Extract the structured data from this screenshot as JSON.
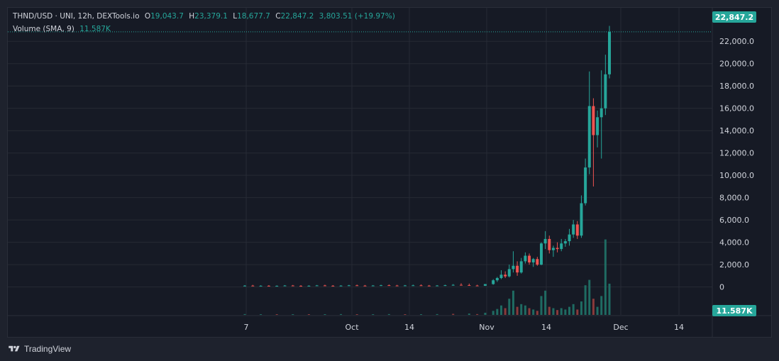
{
  "legend": {
    "symbol": "THND/USD · UNI, 12h, DEXTools.io",
    "open_label": "O",
    "open": "19,043.7",
    "high_label": "H",
    "high": "23,379.1",
    "low_label": "L",
    "low": "18,677.7",
    "close_label": "C",
    "close": "22,847.2",
    "change": "3,803.51 (+19.97%)",
    "volume_label": "Volume (SMA, 9)",
    "volume_value": "11.587K"
  },
  "last_price": "22,847.2",
  "volume_tag": "11.587K",
  "footer": {
    "brand": "TradingView"
  },
  "colors": {
    "up": "#26a69a",
    "down": "#ef5350",
    "grid": "#262a35",
    "text": "#d1d4dc",
    "bg": "#161a25"
  },
  "chart_data": {
    "type": "candlestick",
    "price_axis": {
      "ticks": [
        "0",
        "2,000.0",
        "4,000.0",
        "6,000.0",
        "8,000.0",
        "10,000.0",
        "12,000.0",
        "14,000.0",
        "16,000.0",
        "18,000.0",
        "20,000.0",
        "22,000.0"
      ],
      "ylim": [
        -2500,
        25000
      ]
    },
    "time_axis": {
      "ticks": [
        "7",
        "Oct",
        "14",
        "Nov",
        "14",
        "Dec",
        "14"
      ]
    },
    "candles": [
      {
        "t": 0,
        "o": 100,
        "h": 170,
        "l": 60,
        "c": 120
      },
      {
        "t": 2,
        "o": 120,
        "h": 190,
        "l": 80,
        "c": 90
      },
      {
        "t": 4,
        "o": 90,
        "h": 150,
        "l": 60,
        "c": 110
      },
      {
        "t": 6,
        "o": 110,
        "h": 160,
        "l": 70,
        "c": 80
      },
      {
        "t": 8,
        "o": 80,
        "h": 140,
        "l": 50,
        "c": 100
      },
      {
        "t": 10,
        "o": 100,
        "h": 170,
        "l": 70,
        "c": 130
      },
      {
        "t": 12,
        "o": 130,
        "h": 180,
        "l": 80,
        "c": 100
      },
      {
        "t": 14,
        "o": 100,
        "h": 160,
        "l": 60,
        "c": 90
      },
      {
        "t": 16,
        "o": 90,
        "h": 150,
        "l": 50,
        "c": 110
      },
      {
        "t": 18,
        "o": 110,
        "h": 180,
        "l": 80,
        "c": 140
      },
      {
        "t": 20,
        "o": 140,
        "h": 200,
        "l": 90,
        "c": 110
      },
      {
        "t": 22,
        "o": 110,
        "h": 170,
        "l": 70,
        "c": 100
      },
      {
        "t": 24,
        "o": 100,
        "h": 160,
        "l": 60,
        "c": 120
      },
      {
        "t": 26,
        "o": 120,
        "h": 190,
        "l": 90,
        "c": 150
      },
      {
        "t": 28,
        "o": 150,
        "h": 210,
        "l": 100,
        "c": 120
      },
      {
        "t": 30,
        "o": 120,
        "h": 180,
        "l": 80,
        "c": 110
      },
      {
        "t": 32,
        "o": 110,
        "h": 170,
        "l": 70,
        "c": 130
      },
      {
        "t": 34,
        "o": 130,
        "h": 200,
        "l": 90,
        "c": 160
      },
      {
        "t": 36,
        "o": 160,
        "h": 220,
        "l": 110,
        "c": 130
      },
      {
        "t": 38,
        "o": 130,
        "h": 190,
        "l": 90,
        "c": 120
      },
      {
        "t": 40,
        "o": 120,
        "h": 180,
        "l": 80,
        "c": 140
      },
      {
        "t": 42,
        "o": 140,
        "h": 210,
        "l": 100,
        "c": 150
      },
      {
        "t": 44,
        "o": 150,
        "h": 230,
        "l": 110,
        "c": 120
      },
      {
        "t": 46,
        "o": 120,
        "h": 180,
        "l": 80,
        "c": 110
      },
      {
        "t": 48,
        "o": 110,
        "h": 170,
        "l": 70,
        "c": 130
      },
      {
        "t": 50,
        "o": 130,
        "h": 200,
        "l": 90,
        "c": 160
      },
      {
        "t": 52,
        "o": 160,
        "h": 260,
        "l": 120,
        "c": 190
      },
      {
        "t": 54,
        "o": 190,
        "h": 330,
        "l": 150,
        "c": 170
      },
      {
        "t": 56,
        "o": 170,
        "h": 300,
        "l": 110,
        "c": 130
      },
      {
        "t": 58,
        "o": 130,
        "h": 200,
        "l": 80,
        "c": 110
      },
      {
        "t": 60,
        "o": 110,
        "h": 240,
        "l": 90,
        "c": 260
      },
      {
        "t": 62,
        "o": 260,
        "h": 700,
        "l": 200,
        "c": 600
      },
      {
        "t": 63,
        "o": 600,
        "h": 900,
        "l": 450,
        "c": 800
      },
      {
        "t": 64,
        "o": 800,
        "h": 1500,
        "l": 700,
        "c": 1100
      },
      {
        "t": 65,
        "o": 1100,
        "h": 1400,
        "l": 800,
        "c": 950
      },
      {
        "t": 66,
        "o": 950,
        "h": 2000,
        "l": 850,
        "c": 1600
      },
      {
        "t": 67,
        "o": 1600,
        "h": 3200,
        "l": 1300,
        "c": 1900
      },
      {
        "t": 68,
        "o": 1900,
        "h": 2300,
        "l": 1000,
        "c": 1300
      },
      {
        "t": 69,
        "o": 1300,
        "h": 2600,
        "l": 1200,
        "c": 2300
      },
      {
        "t": 70,
        "o": 2300,
        "h": 3100,
        "l": 2100,
        "c": 2800
      },
      {
        "t": 71,
        "o": 2800,
        "h": 3000,
        "l": 2000,
        "c": 2200
      },
      {
        "t": 72,
        "o": 2200,
        "h": 2600,
        "l": 1800,
        "c": 2500
      },
      {
        "t": 73,
        "o": 2500,
        "h": 2700,
        "l": 1900,
        "c": 2000
      },
      {
        "t": 74,
        "o": 2000,
        "h": 4000,
        "l": 1950,
        "c": 3900
      },
      {
        "t": 75,
        "o": 3900,
        "h": 5000,
        "l": 3400,
        "c": 4300
      },
      {
        "t": 76,
        "o": 4300,
        "h": 4600,
        "l": 3000,
        "c": 3300
      },
      {
        "t": 77,
        "o": 3300,
        "h": 3700,
        "l": 2700,
        "c": 3500
      },
      {
        "t": 78,
        "o": 3500,
        "h": 4000,
        "l": 3100,
        "c": 3400
      },
      {
        "t": 79,
        "o": 3400,
        "h": 4300,
        "l": 3200,
        "c": 3900
      },
      {
        "t": 80,
        "o": 3900,
        "h": 4300,
        "l": 3600,
        "c": 4100
      },
      {
        "t": 81,
        "o": 4100,
        "h": 5200,
        "l": 3700,
        "c": 4700
      },
      {
        "t": 82,
        "o": 4700,
        "h": 6000,
        "l": 4400,
        "c": 5600
      },
      {
        "t": 83,
        "o": 5600,
        "h": 5900,
        "l": 4300,
        "c": 4600
      },
      {
        "t": 84,
        "o": 4600,
        "h": 8200,
        "l": 4400,
        "c": 7500
      },
      {
        "t": 85,
        "o": 7500,
        "h": 11500,
        "l": 7300,
        "c": 10700
      },
      {
        "t": 86,
        "o": 10700,
        "h": 19300,
        "l": 10100,
        "c": 16200
      },
      {
        "t": 87,
        "o": 16200,
        "h": 16900,
        "l": 9000,
        "c": 13600
      },
      {
        "t": 88,
        "o": 13600,
        "h": 15800,
        "l": 12500,
        "c": 15200
      },
      {
        "t": 89,
        "o": 15200,
        "h": 19400,
        "l": 11500,
        "c": 16000
      },
      {
        "t": 90,
        "o": 16000,
        "h": 20800,
        "l": 15400,
        "c": 19043.7
      },
      {
        "t": 91,
        "o": 19043.7,
        "h": 23379.1,
        "l": 18677.7,
        "c": 22847.2
      }
    ],
    "volumes": [
      {
        "t": 0,
        "v": 0.3,
        "up": true
      },
      {
        "t": 4,
        "v": 0.2,
        "up": true
      },
      {
        "t": 8,
        "v": 0.2,
        "up": false
      },
      {
        "t": 12,
        "v": 0.2,
        "up": true
      },
      {
        "t": 16,
        "v": 0.2,
        "up": false
      },
      {
        "t": 20,
        "v": 0.2,
        "up": true
      },
      {
        "t": 24,
        "v": 0.3,
        "up": true
      },
      {
        "t": 28,
        "v": 0.2,
        "up": false
      },
      {
        "t": 32,
        "v": 0.2,
        "up": true
      },
      {
        "t": 36,
        "v": 0.3,
        "up": true
      },
      {
        "t": 40,
        "v": 0.2,
        "up": false
      },
      {
        "t": 44,
        "v": 0.2,
        "up": true
      },
      {
        "t": 48,
        "v": 0.3,
        "up": true
      },
      {
        "t": 52,
        "v": 0.4,
        "up": false
      },
      {
        "t": 56,
        "v": 0.5,
        "up": true
      },
      {
        "t": 58,
        "v": 0.3,
        "up": false
      },
      {
        "t": 60,
        "v": 0.8,
        "up": true
      },
      {
        "t": 62,
        "v": 1.5,
        "up": true
      },
      {
        "t": 63,
        "v": 2.2,
        "up": true
      },
      {
        "t": 64,
        "v": 3.5,
        "up": true
      },
      {
        "t": 65,
        "v": 2.5,
        "up": false
      },
      {
        "t": 66,
        "v": 6,
        "up": true
      },
      {
        "t": 67,
        "v": 9,
        "up": true
      },
      {
        "t": 68,
        "v": 3,
        "up": false
      },
      {
        "t": 69,
        "v": 4,
        "up": true
      },
      {
        "t": 70,
        "v": 3.5,
        "up": true
      },
      {
        "t": 71,
        "v": 2.5,
        "up": false
      },
      {
        "t": 72,
        "v": 2,
        "up": true
      },
      {
        "t": 73,
        "v": 1.5,
        "up": false
      },
      {
        "t": 74,
        "v": 7,
        "up": true
      },
      {
        "t": 75,
        "v": 9,
        "up": true
      },
      {
        "t": 76,
        "v": 3,
        "up": false
      },
      {
        "t": 77,
        "v": 2.5,
        "up": true
      },
      {
        "t": 78,
        "v": 1.8,
        "up": false
      },
      {
        "t": 79,
        "v": 2.5,
        "up": true
      },
      {
        "t": 80,
        "v": 2,
        "up": true
      },
      {
        "t": 81,
        "v": 3,
        "up": true
      },
      {
        "t": 82,
        "v": 4,
        "up": true
      },
      {
        "t": 83,
        "v": 2,
        "up": false
      },
      {
        "t": 84,
        "v": 5,
        "up": true
      },
      {
        "t": 85,
        "v": 11,
        "up": true
      },
      {
        "t": 86,
        "v": 13,
        "up": true
      },
      {
        "t": 87,
        "v": 6,
        "up": false
      },
      {
        "t": 88,
        "v": 3,
        "up": true
      },
      {
        "t": 89,
        "v": 7,
        "up": true
      },
      {
        "t": 90,
        "v": 28,
        "up": true
      },
      {
        "t": 91,
        "v": 11.587,
        "up": true
      }
    ],
    "volume_ylim": [
      0,
      30
    ],
    "grid": true,
    "last_price_line": 22847.2
  }
}
